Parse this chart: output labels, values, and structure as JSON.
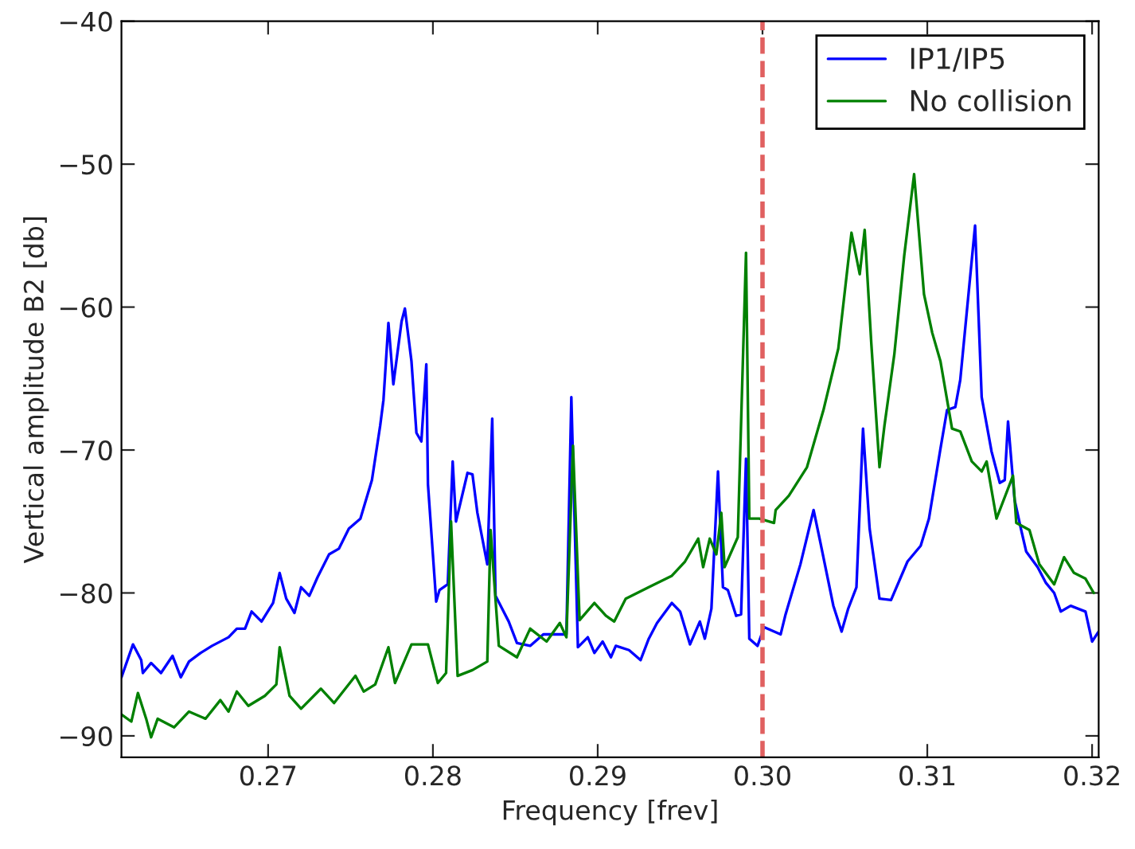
{
  "chart_data": {
    "type": "line",
    "xlabel": "Frequency [frev]",
    "ylabel": "Vertical amplitude B2 [db]",
    "xlim": [
      0.2611,
      0.3204
    ],
    "ylim": [
      -91.5,
      -40
    ],
    "xticks": [
      0.27,
      0.28,
      0.29,
      {
        "value": 0.3,
        "label": "0.30"
      },
      0.31,
      0.32
    ],
    "yticks": [
      -90,
      -80,
      -70,
      -60,
      -50,
      -40
    ],
    "grid": false,
    "legend": "top right",
    "marker": "none",
    "line_style": "solid",
    "ref_lines": [
      {
        "axis": "x",
        "value": 0.3,
        "color": "#e06060",
        "line_style": "dashed"
      }
    ],
    "series": [
      {
        "name": "IP1/IP5",
        "color": "#0000ff",
        "x": [
          0.2611,
          0.2618,
          0.2623,
          0.2624,
          0.2629,
          0.2635,
          0.2642,
          0.2647,
          0.2652,
          0.2659,
          0.2666,
          0.2676,
          0.2681,
          0.2686,
          0.269,
          0.2696,
          0.2703,
          0.2707,
          0.2711,
          0.2716,
          0.272,
          0.2725,
          0.273,
          0.2737,
          0.2743,
          0.2749,
          0.2756,
          0.2763,
          0.2768,
          0.277,
          0.2773,
          0.2776,
          0.2781,
          0.2783,
          0.2787,
          0.279,
          0.2793,
          0.2796,
          0.2797,
          0.2802,
          0.2804,
          0.2809,
          0.2812,
          0.2814,
          0.2821,
          0.2824,
          0.2827,
          0.2833,
          0.2836,
          0.2838,
          0.2846,
          0.2851,
          0.2859,
          0.2867,
          0.2875,
          0.2881,
          0.2884,
          0.2888,
          0.2894,
          0.2898,
          0.2903,
          0.2908,
          0.2911,
          0.2919,
          0.2926,
          0.2931,
          0.2936,
          0.2945,
          0.295,
          0.2956,
          0.2962,
          0.2965,
          0.2969,
          0.2973,
          0.2976,
          0.2979,
          0.2984,
          0.2987,
          0.299,
          0.2992,
          0.2997,
          0.3001,
          0.3011,
          0.3014,
          0.3023,
          0.3031,
          0.3035,
          0.3043,
          0.3048,
          0.3052,
          0.3057,
          0.3061,
          0.3065,
          0.3071,
          0.3078,
          0.3088,
          0.3096,
          0.3101,
          0.3108,
          0.3112,
          0.3117,
          0.312,
          0.3129,
          0.3133,
          0.3139,
          0.3144,
          0.3147,
          0.3149,
          0.3153,
          0.3157,
          0.316,
          0.3167,
          0.3172,
          0.3177,
          0.3181,
          0.3187,
          0.3196,
          0.32,
          0.3204
        ],
        "values": [
          -85.9,
          -83.6,
          -84.7,
          -85.6,
          -84.9,
          -85.6,
          -84.4,
          -85.9,
          -84.8,
          -84.2,
          -83.7,
          -83.1,
          -82.5,
          -82.5,
          -81.3,
          -82.0,
          -80.7,
          -78.6,
          -80.4,
          -81.4,
          -79.6,
          -80.2,
          -78.9,
          -77.3,
          -76.9,
          -75.5,
          -74.8,
          -72.1,
          -68.3,
          -66.5,
          -61.1,
          -65.4,
          -61.0,
          -60.1,
          -63.8,
          -68.8,
          -69.4,
          -64.0,
          -72.4,
          -80.6,
          -79.8,
          -79.4,
          -70.8,
          -75.0,
          -71.6,
          -71.7,
          -74.4,
          -78.0,
          -67.8,
          -80.2,
          -82.0,
          -83.5,
          -83.7,
          -82.9,
          -82.9,
          -82.9,
          -66.3,
          -83.8,
          -83.1,
          -84.2,
          -83.4,
          -84.5,
          -83.7,
          -84.0,
          -84.7,
          -83.2,
          -82.1,
          -80.7,
          -81.3,
          -83.6,
          -82.0,
          -83.2,
          -81.1,
          -71.5,
          -79.6,
          -79.8,
          -81.6,
          -81.5,
          -70.6,
          -83.2,
          -83.7,
          -82.4,
          -82.9,
          -81.5,
          -78.0,
          -74.2,
          -76.4,
          -80.9,
          -82.7,
          -81.1,
          -79.6,
          -68.5,
          -75.5,
          -80.4,
          -80.5,
          -77.8,
          -76.7,
          -74.8,
          -69.9,
          -67.2,
          -67.0,
          -65.1,
          -54.3,
          -66.3,
          -70.1,
          -72.3,
          -72.1,
          -68.0,
          -73.5,
          -75.6,
          -77.1,
          -78.2,
          -79.3,
          -80.0,
          -81.3,
          -80.9,
          -81.3,
          -83.4,
          -82.7
        ]
      },
      {
        "name": "No collision",
        "color": "#008000",
        "x": [
          0.2611,
          0.2617,
          0.2621,
          0.2626,
          0.2629,
          0.2633,
          0.2643,
          0.2652,
          0.2662,
          0.2671,
          0.2676,
          0.2681,
          0.2688,
          0.2698,
          0.2705,
          0.2707,
          0.2713,
          0.272,
          0.2732,
          0.274,
          0.2753,
          0.2758,
          0.2765,
          0.2773,
          0.2777,
          0.2787,
          0.2797,
          0.2803,
          0.2808,
          0.2811,
          0.2815,
          0.2824,
          0.2833,
          0.2835,
          0.284,
          0.2851,
          0.2859,
          0.2869,
          0.2877,
          0.2881,
          0.2885,
          0.2889,
          0.2898,
          0.2905,
          0.291,
          0.2917,
          0.2931,
          0.2945,
          0.2953,
          0.2961,
          0.2964,
          0.2968,
          0.2972,
          0.2975,
          0.2977,
          0.2985,
          0.299,
          0.2992,
          0.2998,
          0.3007,
          0.3008,
          0.3016,
          0.3027,
          0.3037,
          0.3046,
          0.3054,
          0.3059,
          0.3062,
          0.3066,
          0.3071,
          0.3074,
          0.308,
          0.3086,
          0.3092,
          0.3098,
          0.3103,
          0.3108,
          0.3115,
          0.312,
          0.3127,
          0.3133,
          0.3136,
          0.3142,
          0.3152,
          0.3154,
          0.3162,
          0.3168,
          0.3177,
          0.3183,
          0.3189,
          0.3196,
          0.3201
        ],
        "values": [
          -88.5,
          -89.0,
          -87.0,
          -88.8,
          -90.1,
          -88.8,
          -89.4,
          -88.3,
          -88.8,
          -87.5,
          -88.3,
          -86.9,
          -87.9,
          -87.2,
          -86.4,
          -83.8,
          -87.2,
          -88.1,
          -86.7,
          -87.7,
          -85.8,
          -86.9,
          -86.4,
          -83.8,
          -86.3,
          -83.6,
          -83.6,
          -86.3,
          -85.6,
          -75.0,
          -85.8,
          -85.4,
          -84.8,
          -75.6,
          -83.7,
          -84.5,
          -82.5,
          -83.4,
          -82.1,
          -83.1,
          -69.7,
          -81.9,
          -80.7,
          -81.6,
          -82.0,
          -80.4,
          -79.6,
          -78.8,
          -77.8,
          -76.2,
          -78.2,
          -76.2,
          -77.3,
          -74.4,
          -78.2,
          -76.1,
          -56.2,
          -74.8,
          -74.8,
          -75.1,
          -74.2,
          -73.2,
          -71.2,
          -67.2,
          -62.9,
          -54.8,
          -57.7,
          -54.6,
          -62.5,
          -71.2,
          -68.3,
          -63.3,
          -56.4,
          -50.7,
          -59.1,
          -61.8,
          -63.8,
          -68.5,
          -68.7,
          -70.8,
          -71.5,
          -70.8,
          -74.8,
          -71.8,
          -75.1,
          -75.6,
          -78.0,
          -79.4,
          -77.5,
          -78.6,
          -79.0,
          -80.0
        ]
      }
    ]
  }
}
